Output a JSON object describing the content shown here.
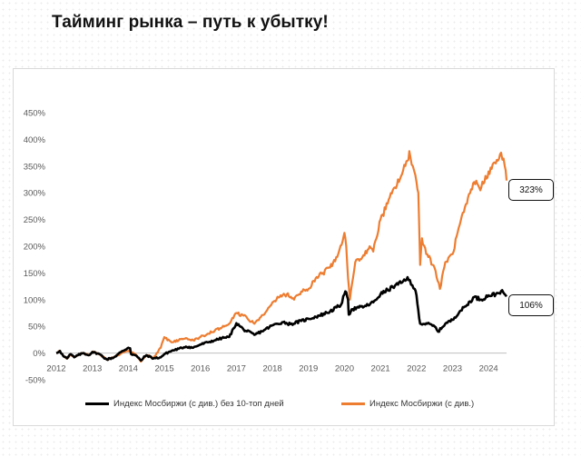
{
  "title": "Тайминг рынка – путь к убытку!",
  "chart_data": {
    "type": "line",
    "x_ticks": [
      "2012",
      "2013",
      "2014",
      "2015",
      "2016",
      "2017",
      "2018",
      "2019",
      "2020",
      "2021",
      "2022",
      "2023",
      "2024"
    ],
    "y_ticks": [
      "450%",
      "400%",
      "350%",
      "300%",
      "250%",
      "200%",
      "150%",
      "100%",
      "50%",
      "0%",
      "-50%"
    ],
    "ylim": [
      -50,
      450
    ],
    "xlim": [
      2012.0,
      2024.5
    ],
    "grid": false,
    "legend_position": "bottom",
    "series": [
      {
        "name": "Индекс Мосбиржи  (с див.) без 10-топ дней",
        "color": "#000000",
        "end_label": "106%",
        "points": [
          [
            2012.0,
            0
          ],
          [
            2012.1,
            4
          ],
          [
            2012.2,
            -6
          ],
          [
            2012.3,
            -10
          ],
          [
            2012.4,
            -2
          ],
          [
            2012.5,
            -8
          ],
          [
            2012.6,
            -4
          ],
          [
            2012.75,
            0
          ],
          [
            2012.9,
            -4
          ],
          [
            2013.0,
            2
          ],
          [
            2013.2,
            -2
          ],
          [
            2013.4,
            -12
          ],
          [
            2013.6,
            -8
          ],
          [
            2013.8,
            2
          ],
          [
            2014.0,
            10
          ],
          [
            2014.05,
            9
          ],
          [
            2014.08,
            -2
          ],
          [
            2014.2,
            -4
          ],
          [
            2014.35,
            -14
          ],
          [
            2014.5,
            -4
          ],
          [
            2014.7,
            -10
          ],
          [
            2014.9,
            -8
          ],
          [
            2015.0,
            -2
          ],
          [
            2015.2,
            4
          ],
          [
            2015.4,
            8
          ],
          [
            2015.6,
            12
          ],
          [
            2015.8,
            10
          ],
          [
            2016.0,
            16
          ],
          [
            2016.2,
            20
          ],
          [
            2016.4,
            24
          ],
          [
            2016.6,
            28
          ],
          [
            2016.8,
            30
          ],
          [
            2017.0,
            56
          ],
          [
            2017.2,
            44
          ],
          [
            2017.5,
            34
          ],
          [
            2017.8,
            44
          ],
          [
            2018.0,
            52
          ],
          [
            2018.3,
            58
          ],
          [
            2018.5,
            54
          ],
          [
            2018.8,
            60
          ],
          [
            2019.0,
            64
          ],
          [
            2019.3,
            70
          ],
          [
            2019.6,
            78
          ],
          [
            2019.9,
            90
          ],
          [
            2020.0,
            110
          ],
          [
            2020.05,
            114
          ],
          [
            2020.1,
            100
          ],
          [
            2020.12,
            72
          ],
          [
            2020.2,
            82
          ],
          [
            2020.4,
            85
          ],
          [
            2020.6,
            88
          ],
          [
            2020.8,
            95
          ],
          [
            2021.0,
            110
          ],
          [
            2021.2,
            118
          ],
          [
            2021.4,
            126
          ],
          [
            2021.6,
            132
          ],
          [
            2021.75,
            142
          ],
          [
            2021.85,
            128
          ],
          [
            2021.95,
            120
          ],
          [
            2022.0,
            108
          ],
          [
            2022.05,
            80
          ],
          [
            2022.1,
            55
          ],
          [
            2022.3,
            55
          ],
          [
            2022.5,
            50
          ],
          [
            2022.6,
            40
          ],
          [
            2022.8,
            55
          ],
          [
            2023.0,
            62
          ],
          [
            2023.2,
            78
          ],
          [
            2023.4,
            90
          ],
          [
            2023.6,
            105
          ],
          [
            2023.8,
            100
          ],
          [
            2024.0,
            108
          ],
          [
            2024.2,
            110
          ],
          [
            2024.35,
            116
          ],
          [
            2024.5,
            106
          ]
        ]
      },
      {
        "name": "Индекс Мосбиржи  (с див.)",
        "color": "#ED7D31",
        "end_label": "323%",
        "points": [
          [
            2012.0,
            0
          ],
          [
            2012.1,
            4
          ],
          [
            2012.2,
            -6
          ],
          [
            2012.3,
            -10
          ],
          [
            2012.4,
            -2
          ],
          [
            2012.5,
            -8
          ],
          [
            2012.6,
            -4
          ],
          [
            2012.75,
            0
          ],
          [
            2012.9,
            -4
          ],
          [
            2013.0,
            2
          ],
          [
            2013.2,
            -2
          ],
          [
            2013.4,
            -12
          ],
          [
            2013.6,
            -8
          ],
          [
            2013.8,
            0
          ],
          [
            2014.0,
            4
          ],
          [
            2014.2,
            -2
          ],
          [
            2014.35,
            -16
          ],
          [
            2014.5,
            -4
          ],
          [
            2014.7,
            -10
          ],
          [
            2014.9,
            10
          ],
          [
            2015.0,
            30
          ],
          [
            2015.2,
            20
          ],
          [
            2015.4,
            24
          ],
          [
            2015.6,
            28
          ],
          [
            2015.8,
            24
          ],
          [
            2016.0,
            30
          ],
          [
            2016.2,
            36
          ],
          [
            2016.4,
            42
          ],
          [
            2016.6,
            48
          ],
          [
            2016.8,
            55
          ],
          [
            2017.0,
            75
          ],
          [
            2017.2,
            70
          ],
          [
            2017.5,
            55
          ],
          [
            2017.8,
            75
          ],
          [
            2018.0,
            95
          ],
          [
            2018.2,
            105
          ],
          [
            2018.4,
            110
          ],
          [
            2018.6,
            100
          ],
          [
            2018.8,
            115
          ],
          [
            2019.0,
            120
          ],
          [
            2019.2,
            140
          ],
          [
            2019.4,
            150
          ],
          [
            2019.6,
            160
          ],
          [
            2019.8,
            180
          ],
          [
            2019.95,
            210
          ],
          [
            2020.0,
            225
          ],
          [
            2020.05,
            200
          ],
          [
            2020.1,
            140
          ],
          [
            2020.15,
            100
          ],
          [
            2020.3,
            170
          ],
          [
            2020.5,
            180
          ],
          [
            2020.7,
            200
          ],
          [
            2020.8,
            190
          ],
          [
            2021.0,
            250
          ],
          [
            2021.2,
            280
          ],
          [
            2021.4,
            310
          ],
          [
            2021.6,
            335
          ],
          [
            2021.75,
            360
          ],
          [
            2021.8,
            378
          ],
          [
            2021.9,
            350
          ],
          [
            2022.0,
            320
          ],
          [
            2022.05,
            300
          ],
          [
            2022.08,
            220
          ],
          [
            2022.1,
            165
          ],
          [
            2022.15,
            215
          ],
          [
            2022.3,
            185
          ],
          [
            2022.5,
            160
          ],
          [
            2022.65,
            120
          ],
          [
            2022.8,
            170
          ],
          [
            2023.0,
            185
          ],
          [
            2023.2,
            240
          ],
          [
            2023.4,
            280
          ],
          [
            2023.6,
            320
          ],
          [
            2023.8,
            310
          ],
          [
            2024.0,
            340
          ],
          [
            2024.2,
            355
          ],
          [
            2024.35,
            375
          ],
          [
            2024.45,
            350
          ],
          [
            2024.5,
            323
          ]
        ]
      }
    ]
  }
}
